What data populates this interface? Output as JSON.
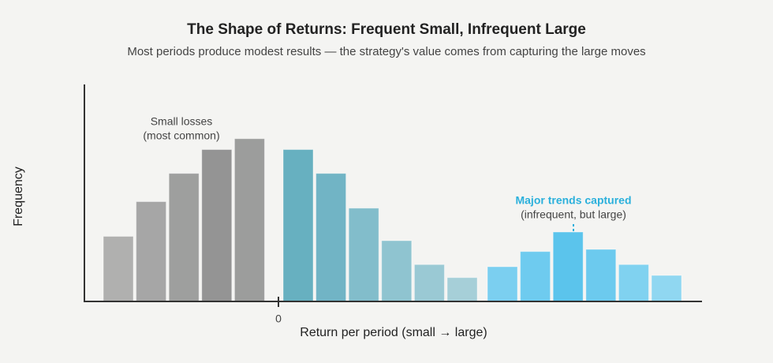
{
  "chart_data": {
    "type": "bar",
    "title": "The Shape of Returns: Frequent Small, Infrequent Large",
    "subtitle": "Most periods produce modest results — the strategy's value comes from capturing the large moves",
    "x_label": "Return per period (small → large)",
    "y_label": "Frequency",
    "ylim": [
      0,
      100
    ],
    "xticks": [
      0
    ],
    "series": [
      {
        "categories": [
          null,
          null,
          null,
          null,
          null
        ],
        "values": [
          30,
          46,
          59,
          70,
          75
        ],
        "colors": [
          "#b0b0af",
          "#a6a6a6",
          "#9e9f9e",
          "#949494",
          "#9c9d9c"
        ]
      },
      {
        "categories": [
          null,
          null,
          null,
          null,
          null,
          null
        ],
        "values": [
          70,
          59,
          43,
          28,
          17,
          11
        ],
        "colors": [
          "#67b0c0",
          "#71b4c5",
          "#82bdcb",
          "#8fc4d0",
          "#9ac9d4",
          "#a6cfd8"
        ]
      },
      {
        "categories": [
          null,
          null,
          null,
          null,
          null,
          null
        ],
        "values": [
          16,
          23,
          32,
          24,
          17,
          12
        ],
        "colors": [
          "#7bcff0",
          "#6ecbef",
          "#5bc4ec",
          "#6ccaee",
          "#80d2f0",
          "#90d7f1"
        ]
      }
    ],
    "annotations": [
      {
        "lines": [
          "Small losses",
          "(most common)"
        ]
      },
      {
        "lines": [
          "Major trends captured",
          "(infrequent, but large)"
        ]
      }
    ]
  }
}
